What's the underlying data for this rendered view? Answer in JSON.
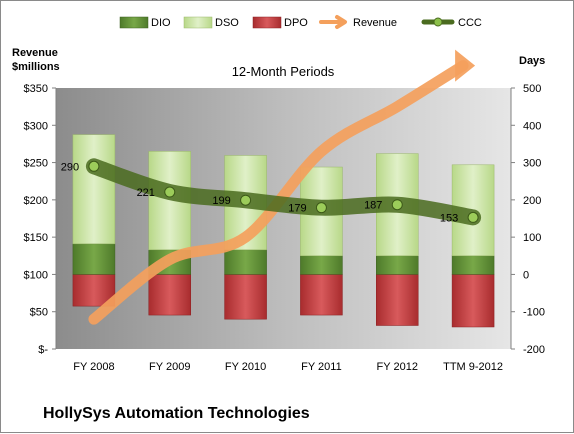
{
  "chart_data": {
    "type": "bar",
    "subtitle": "12-Month Periods",
    "company": "HollySys Automation Technologies",
    "left_axis": {
      "title_line1": "Revenue",
      "title_line2": "$millions",
      "ylim": [
        0,
        350
      ],
      "ticks": [
        0,
        50,
        100,
        150,
        200,
        250,
        300,
        350
      ],
      "tick_labels": [
        "$-",
        "$50",
        "$100",
        "$150",
        "$200",
        "$250",
        "$300",
        "$350"
      ]
    },
    "right_axis": {
      "title": "Days",
      "ylim": [
        -200,
        500
      ],
      "ticks": [
        -200,
        -100,
        0,
        100,
        200,
        300,
        400,
        500
      ],
      "tick_labels": [
        "-200",
        "-100",
        "0",
        "100",
        "200",
        "300",
        "400",
        "500"
      ]
    },
    "categories": [
      "FY 2008",
      "FY 2009",
      "FY 2010",
      "FY 2011",
      "FY 2012",
      "TTM 9-2012"
    ],
    "series": [
      {
        "name": "DIO",
        "axis": "right",
        "kind": "stacked-bar-positive",
        "color": "#5a8a32",
        "values": [
          82,
          66,
          66,
          50,
          50,
          50
        ]
      },
      {
        "name": "DSO",
        "axis": "right",
        "kind": "stacked-bar-positive",
        "color": "#c8e0a0",
        "values": [
          293,
          264,
          253,
          238,
          274,
          244
        ]
      },
      {
        "name": "DPO",
        "axis": "right",
        "kind": "stacked-bar-negative",
        "color": "#c0383a",
        "values": [
          -85,
          -109,
          -120,
          -109,
          -137,
          -141
        ]
      },
      {
        "name": "Revenue",
        "axis": "left",
        "kind": "arrow-line",
        "color": "#f4a05c",
        "values": [
          40,
          120,
          150,
          265,
          325,
          380
        ]
      },
      {
        "name": "CCC",
        "axis": "right",
        "kind": "thick-line-markers",
        "color": "#4a6b1f",
        "values": [
          290,
          221,
          199,
          179,
          187,
          153
        ]
      }
    ],
    "ccc_labels": [
      "290",
      "221",
      "199",
      "179",
      "187",
      "153"
    ],
    "legend": [
      "DIO",
      "DSO",
      "DPO",
      "Revenue",
      "CCC"
    ],
    "legend_position": "top",
    "grid": false,
    "plot_background": "#a6a6a6"
  }
}
